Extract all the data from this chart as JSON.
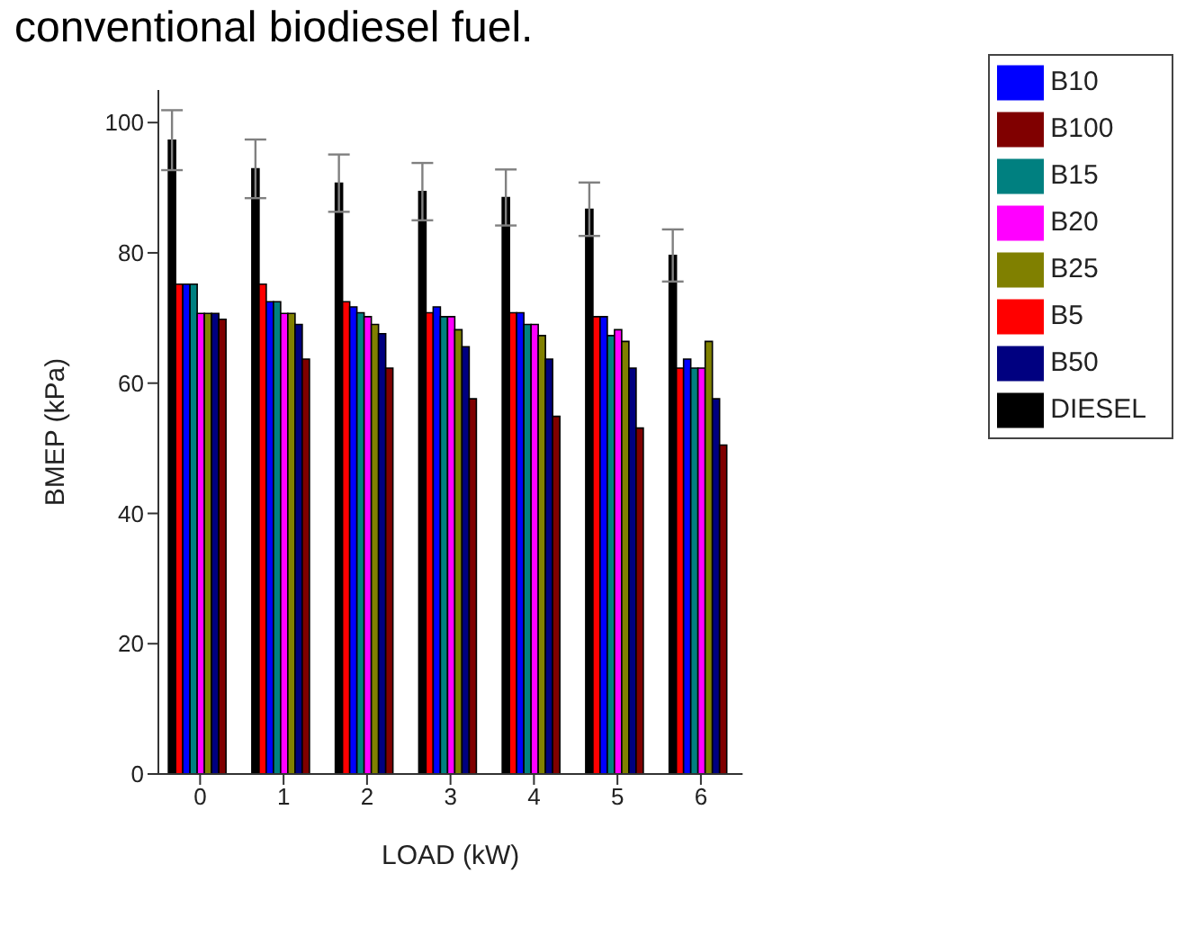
{
  "chart_data": {
    "type": "bar",
    "title": "conventional biodiesel fuel.",
    "xlabel": "LOAD (kW)",
    "ylabel": "BMEP (kPa)",
    "categories": [
      "0",
      "1",
      "2",
      "3",
      "4",
      "5",
      "6"
    ],
    "series": [
      {
        "name": "DIESEL",
        "color": "#000000",
        "values": [
          97.3,
          92.9,
          90.7,
          89.4,
          88.5,
          86.7,
          79.6
        ],
        "errors": [
          4.6,
          4.5,
          4.4,
          4.4,
          4.3,
          4.1,
          4.0
        ]
      },
      {
        "name": "B5",
        "color": "#ff0000",
        "values": [
          75.2,
          75.2,
          72.5,
          70.8,
          70.8,
          70.2,
          62.3
        ]
      },
      {
        "name": "B10",
        "color": "#0000ff",
        "values": [
          75.2,
          72.5,
          71.7,
          71.7,
          70.8,
          70.2,
          63.7
        ]
      },
      {
        "name": "B15",
        "color": "#008080",
        "values": [
          75.2,
          72.5,
          70.8,
          70.2,
          69.0,
          67.3,
          62.3
        ]
      },
      {
        "name": "B20",
        "color": "#ff00ff",
        "values": [
          70.7,
          70.7,
          70.2,
          70.2,
          69.0,
          68.2,
          62.3
        ]
      },
      {
        "name": "B25",
        "color": "#808000",
        "values": [
          70.7,
          70.7,
          69.0,
          68.2,
          67.3,
          66.4,
          66.4
        ]
      },
      {
        "name": "B50",
        "color": "#000080",
        "values": [
          70.7,
          69.0,
          67.6,
          65.6,
          63.7,
          62.3,
          57.6
        ]
      },
      {
        "name": "B100",
        "color": "#800000",
        "values": [
          69.8,
          63.7,
          62.3,
          57.6,
          54.9,
          53.1,
          50.5
        ]
      }
    ],
    "ylim": [
      0,
      105
    ],
    "yticks": [
      0,
      20,
      40,
      60,
      80,
      100
    ],
    "grid": false,
    "legend": "top right"
  }
}
